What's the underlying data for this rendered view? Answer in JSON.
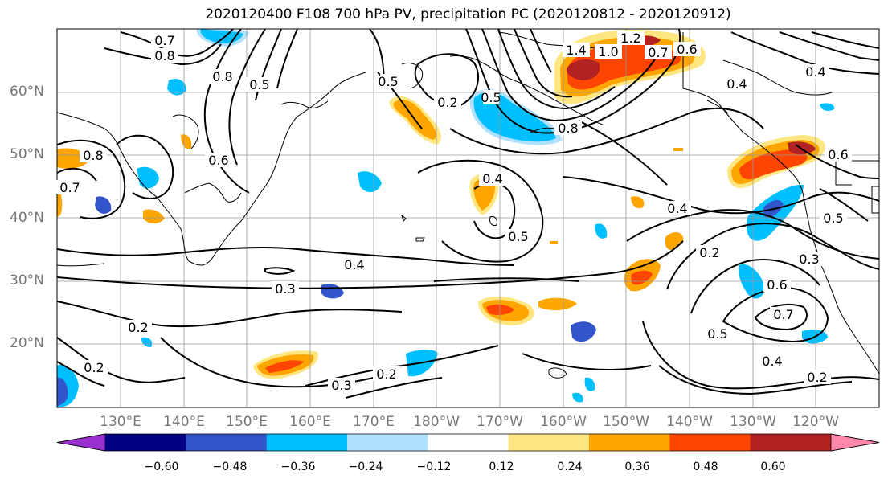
{
  "title": "2020120400 F108 700 hPa PV, precipitation PC (2020120812 - 2020120912)",
  "lat_labels": [
    "60°N",
    "50°N",
    "40°N",
    "30°N",
    "20°N"
  ],
  "lon_labels": [
    "130°E",
    "140°E",
    "150°E",
    "160°E",
    "170°E",
    "180°W",
    "170°W",
    "160°W",
    "150°W",
    "140°W",
    "130°W",
    "120°W"
  ],
  "contour_labels": [
    "0.7",
    "0.8",
    "0.8",
    "0.5",
    "0.6",
    "0.8",
    "0.7",
    "0.2",
    "1.0",
    "1.2",
    "1.4",
    "0.6",
    "0.7",
    "0.8",
    "0.4",
    "0.4",
    "0.6",
    "0.4",
    "0.5",
    "0.4",
    "0.3",
    "0.4",
    "0.2",
    "0.2",
    "0.3",
    "0.2",
    "0.2",
    "0.3",
    "0.5",
    "0.6",
    "0.7",
    "0.5",
    "0.4",
    "0.2",
    "0.5",
    "0.5"
  ],
  "colorbar": {
    "colors": [
      "#9b30d0",
      "#000080",
      "#3355cc",
      "#00bfff",
      "#b0e2ff",
      "#ffffff",
      "#ffe680",
      "#ffa500",
      "#ff4500",
      "#b22222",
      "#ff88aa"
    ],
    "tick_labels": [
      "−0.60",
      "−0.48",
      "−0.36",
      "−0.24",
      "−0.12",
      "0.12",
      "0.24",
      "0.36",
      "0.48",
      "0.60"
    ]
  }
}
